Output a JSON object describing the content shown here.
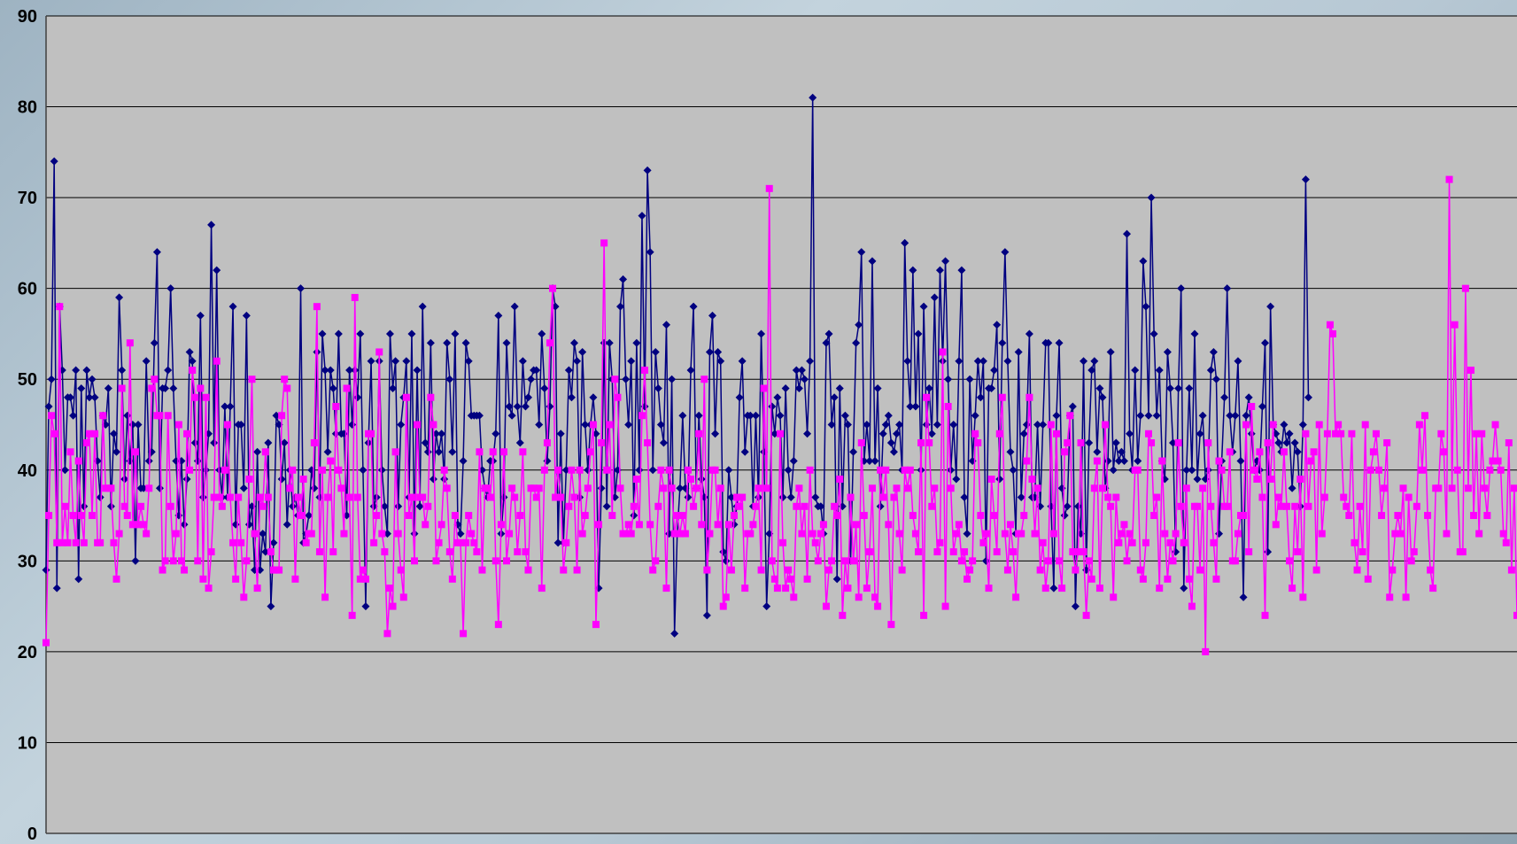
{
  "chart_data": {
    "type": "line",
    "title": "",
    "xlabel": "",
    "ylabel": "",
    "ylim": [
      0,
      90
    ],
    "yticks": [
      0,
      10,
      20,
      30,
      40,
      50,
      60,
      70,
      80,
      90
    ],
    "grid": true,
    "legend": "none",
    "colors": {
      "plot_background": "#c0c0c0",
      "gridline": "#000000"
    },
    "series": [
      {
        "color": "#000080",
        "marker": "diamond",
        "values": [
          29,
          47,
          50,
          74,
          27,
          58,
          51,
          40,
          48,
          48,
          46,
          51,
          28,
          49,
          36,
          51,
          48,
          50,
          48,
          41,
          37,
          46,
          45,
          49,
          36,
          44,
          42,
          59,
          51,
          39,
          46,
          41,
          45,
          30,
          45,
          38,
          38,
          52,
          41,
          42,
          54,
          64,
          38,
          49,
          49,
          51,
          60,
          49,
          41,
          35,
          41,
          34,
          39,
          53,
          52,
          43,
          41,
          57,
          37,
          40,
          44,
          67,
          43,
          62,
          40,
          37,
          47,
          37,
          47,
          58,
          34,
          45,
          45,
          38,
          57,
          34,
          36,
          29,
          42,
          29,
          33,
          31,
          43,
          25,
          32,
          46,
          45,
          39,
          43,
          34,
          40,
          36,
          37,
          35,
          60,
          32,
          33,
          35,
          40,
          38,
          53,
          37,
          55,
          51,
          42,
          51,
          49,
          44,
          55,
          44,
          44,
          35,
          51,
          45,
          51,
          48,
          55,
          40,
          25,
          43,
          52,
          36,
          37,
          52,
          40,
          36,
          33,
          55,
          49,
          52,
          36,
          45,
          48,
          52,
          37,
          55,
          33,
          51,
          36,
          58,
          43,
          42,
          54,
          39,
          44,
          42,
          44,
          39,
          54,
          50,
          42,
          55,
          34,
          33,
          41,
          54,
          52,
          46,
          46,
          46,
          46,
          40,
          38,
          37,
          41,
          41,
          44,
          57,
          33,
          37,
          54,
          47,
          46,
          58,
          47,
          43,
          52,
          47,
          48,
          50,
          51,
          51,
          45,
          55,
          49,
          41,
          47,
          60,
          58,
          32,
          44,
          32,
          40,
          51,
          48,
          54,
          52,
          37,
          53,
          45,
          40,
          45,
          48,
          44,
          27,
          38,
          54,
          36,
          54,
          50,
          37,
          40,
          58,
          61,
          50,
          45,
          52,
          35,
          54,
          40,
          68,
          47,
          73,
          64,
          40,
          53,
          49,
          45,
          43,
          56,
          33,
          50,
          22,
          33,
          38,
          46,
          38,
          37,
          51,
          58,
          38,
          46,
          39,
          37,
          24,
          53,
          57,
          44,
          53,
          52,
          31,
          30,
          40,
          37,
          34,
          36,
          48,
          52,
          42,
          46,
          46,
          36,
          46,
          37,
          55,
          42,
          25,
          33,
          47,
          44,
          48,
          46,
          37,
          49,
          40,
          37,
          41,
          51,
          49,
          51,
          50,
          44,
          52,
          81,
          37,
          36,
          36,
          33,
          54,
          55,
          45,
          48,
          28,
          49,
          36,
          46,
          45,
          30,
          42,
          54,
          56,
          64,
          41,
          45,
          41,
          63,
          41,
          49,
          36,
          44,
          45,
          46,
          43,
          42,
          44,
          45,
          40,
          65,
          52,
          47,
          62,
          47,
          55,
          40,
          58,
          45,
          49,
          44,
          59,
          45,
          62,
          52,
          63,
          50,
          40,
          45,
          39,
          52,
          62,
          37,
          33,
          50,
          41,
          46,
          52,
          48,
          52,
          30,
          49,
          49,
          51,
          56,
          39,
          54,
          64,
          52,
          42,
          40,
          33,
          53,
          37,
          44,
          45,
          55,
          37,
          37,
          45,
          36,
          45,
          54,
          54,
          36,
          27,
          46,
          54,
          38,
          35,
          36,
          46,
          47,
          25,
          36,
          33,
          52,
          29,
          43,
          51,
          52,
          42,
          49,
          48,
          38,
          41,
          53,
          40,
          43,
          41,
          42,
          41,
          66,
          44,
          40,
          51,
          41,
          46,
          63,
          58,
          46,
          70,
          55,
          46,
          51,
          41,
          39,
          53,
          49,
          43,
          31,
          49,
          60,
          27,
          40,
          49,
          40,
          55,
          39,
          44,
          46,
          39,
          40,
          51,
          53,
          50,
          33,
          41,
          48,
          60,
          46,
          42,
          46,
          52,
          41,
          26,
          46,
          48,
          44,
          40,
          41,
          40,
          47,
          54,
          31,
          58,
          45,
          44,
          43,
          42,
          45,
          43,
          44,
          38,
          43,
          42,
          36,
          45,
          72,
          48
        ]
      },
      {
        "color": "#ff00ff",
        "marker": "square",
        "values": [
          21,
          35,
          46,
          44,
          32,
          58,
          32,
          36,
          32,
          42,
          35,
          32,
          41,
          35,
          32,
          43,
          44,
          35,
          44,
          32,
          32,
          46,
          38,
          38,
          38,
          32,
          28,
          33,
          49,
          36,
          35,
          54,
          34,
          42,
          34,
          36,
          34,
          33,
          38,
          49,
          50,
          46,
          46,
          29,
          30,
          46,
          36,
          30,
          33,
          45,
          30,
          29,
          44,
          40,
          51,
          48,
          30,
          49,
          28,
          48,
          27,
          31,
          37,
          52,
          37,
          36,
          40,
          45,
          37,
          32,
          28,
          37,
          32,
          26,
          30,
          39,
          50,
          33,
          27,
          37,
          36,
          42,
          37,
          31,
          29,
          29,
          29,
          46,
          50,
          49,
          38,
          40,
          28,
          37,
          35,
          39,
          32,
          33,
          33,
          43,
          58,
          31,
          40,
          26,
          37,
          41,
          31,
          47,
          40,
          38,
          33,
          49,
          37,
          24,
          59,
          37,
          28,
          29,
          28,
          44,
          44,
          32,
          35,
          53,
          33,
          31,
          22,
          27,
          25,
          42,
          33,
          29,
          26,
          48,
          35,
          37,
          30,
          45,
          37,
          37,
          34,
          36,
          48,
          45,
          30,
          32,
          34,
          40,
          38,
          31,
          28,
          35,
          32,
          32,
          22,
          32,
          35,
          33,
          32,
          31,
          42,
          29,
          38,
          38,
          37,
          42,
          30,
          23,
          34,
          42,
          30,
          33,
          38,
          37,
          31,
          35,
          42,
          31,
          29,
          38,
          38,
          37,
          38,
          27,
          40,
          43,
          54,
          60,
          37,
          40,
          37,
          29,
          32,
          36,
          40,
          37,
          29,
          40,
          33,
          35,
          38,
          42,
          45,
          23,
          34,
          43,
          65,
          40,
          45,
          35,
          50,
          48,
          38,
          33,
          33,
          34,
          33,
          36,
          39,
          34,
          46,
          51,
          43,
          34,
          29,
          30,
          36,
          40,
          38,
          27,
          40,
          38,
          33,
          35,
          33,
          35,
          33,
          40,
          39,
          36,
          38,
          44,
          34,
          50,
          29,
          33,
          40,
          40,
          34,
          38,
          25,
          26,
          34,
          29,
          35,
          37,
          36,
          37,
          27,
          33,
          33,
          34,
          36,
          38,
          29,
          49,
          38,
          71,
          30,
          28,
          27,
          44,
          32,
          27,
          29,
          28,
          26,
          36,
          38,
          33,
          36,
          28,
          40,
          33,
          32,
          30,
          33,
          34,
          25,
          29,
          30,
          36,
          35,
          39,
          24,
          30,
          27,
          37,
          30,
          34,
          26,
          43,
          35,
          27,
          31,
          38,
          26,
          25,
          40,
          37,
          40,
          34,
          23,
          37,
          38,
          33,
          29,
          40,
          38,
          40,
          35,
          33,
          31,
          43,
          24,
          48,
          43,
          36,
          38,
          31,
          32,
          53,
          25,
          47,
          38,
          31,
          33,
          34,
          30,
          31,
          28,
          29,
          30,
          44,
          43,
          35,
          32,
          33,
          27,
          39,
          35,
          31,
          44,
          48,
          33,
          29,
          34,
          31,
          26,
          33,
          33,
          35,
          41,
          48,
          39,
          33,
          38,
          29,
          32,
          27,
          30,
          45,
          33,
          44,
          30,
          27,
          42,
          43,
          46,
          31,
          29,
          31,
          43,
          31,
          24,
          30,
          28,
          38,
          41,
          27,
          38,
          45,
          37,
          36,
          26,
          37,
          32,
          33,
          34,
          30,
          33,
          32,
          40,
          40,
          29,
          28,
          32,
          44,
          43,
          35,
          37,
          27,
          41,
          33,
          28,
          32,
          30,
          33,
          43,
          36,
          32,
          38,
          28,
          25,
          36,
          36,
          29,
          38,
          20,
          43,
          36,
          32,
          28,
          41,
          40,
          36,
          36,
          42,
          30,
          30,
          33,
          35,
          35,
          45,
          31,
          47,
          40,
          39,
          42,
          37,
          24,
          43,
          39,
          45,
          34,
          37,
          36,
          42,
          36,
          30,
          27,
          36,
          31,
          39,
          26,
          44,
          36,
          41,
          42,
          29,
          45,
          33,
          37,
          44,
          56,
          55,
          44,
          45,
          44,
          37,
          36,
          35,
          44,
          32,
          29,
          36,
          31,
          45,
          28,
          40,
          42,
          44,
          40,
          35,
          38,
          43,
          26,
          29,
          33,
          35,
          33,
          38,
          26,
          37,
          30,
          31,
          36,
          45,
          40,
          46,
          35,
          29,
          27,
          38,
          38,
          44,
          42,
          33,
          72,
          38,
          56,
          40,
          31,
          31,
          60,
          38,
          51,
          35,
          44,
          33,
          44,
          38,
          35,
          40,
          41,
          45,
          41,
          40,
          33,
          32,
          43,
          29,
          38,
          24
        ]
      }
    ]
  }
}
